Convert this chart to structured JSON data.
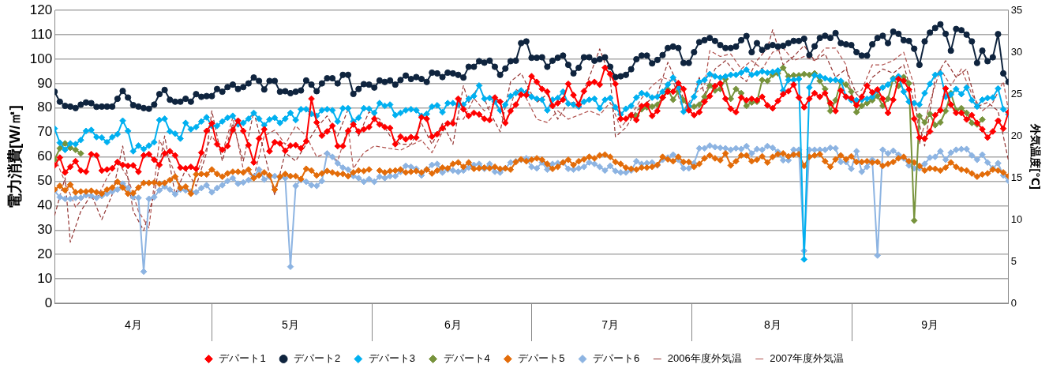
{
  "chart_data": {
    "type": "line",
    "ylabel": "電力消費[W/㎡]",
    "y2label": "外気温度[℃]",
    "x": [
      "--04-01",
      "--04-02",
      "--04-03",
      "--04-04",
      "--04-05",
      "--04-06",
      "--04-07",
      "--04-08",
      "--04-09",
      "--04-10",
      "--04-11",
      "--04-12",
      "--04-13",
      "--04-14",
      "--04-15",
      "--04-16",
      "--04-17",
      "--04-18",
      "--04-19",
      "--04-20",
      "--04-21",
      "--04-22",
      "--04-23",
      "--04-24",
      "--04-25",
      "--04-26",
      "--04-27",
      "--04-28",
      "--04-29",
      "--04-30",
      "--05-01",
      "--05-02",
      "--05-03",
      "--05-04",
      "--05-05",
      "--05-06",
      "--05-07",
      "--05-08",
      "--05-09",
      "--05-10",
      "--05-11",
      "--05-12",
      "--05-13",
      "--05-14",
      "--05-15",
      "--05-16",
      "--05-17",
      "--05-18",
      "--05-19",
      "--05-20",
      "--05-21",
      "--05-22",
      "--05-23",
      "--05-24",
      "--05-25",
      "--05-26",
      "--05-27",
      "--05-28",
      "--05-29",
      "--05-30",
      "--05-31",
      "--06-01",
      "--06-02",
      "--06-03",
      "--06-04",
      "--06-05",
      "--06-06",
      "--06-07",
      "--06-08",
      "--06-09",
      "--06-10",
      "--06-11",
      "--06-12",
      "--06-13",
      "--06-14",
      "--06-15",
      "--06-16",
      "--06-17",
      "--06-18",
      "--06-19",
      "--06-20",
      "--06-21",
      "--06-22",
      "--06-23",
      "--06-24",
      "--06-25",
      "--06-26",
      "--06-27",
      "--06-28",
      "--06-29",
      "--06-30",
      "--07-01",
      "--07-02",
      "--07-03",
      "--07-04",
      "--07-05",
      "--07-06",
      "--07-07",
      "--07-08",
      "--07-09",
      "--07-10",
      "--07-11",
      "--07-12",
      "--07-13",
      "--07-14",
      "--07-15",
      "--07-16",
      "--07-17",
      "--07-18",
      "--07-19",
      "--07-20",
      "--07-21",
      "--07-22",
      "--07-23",
      "--07-24",
      "--07-25",
      "--07-26",
      "--07-27",
      "--07-28",
      "--07-29",
      "--07-30",
      "--07-31",
      "--08-01",
      "--08-02",
      "--08-03",
      "--08-04",
      "--08-05",
      "--08-06",
      "--08-07",
      "--08-08",
      "--08-09",
      "--08-10",
      "--08-11",
      "--08-12",
      "--08-13",
      "--08-14",
      "--08-15",
      "--08-16",
      "--08-17",
      "--08-18",
      "--08-19",
      "--08-20",
      "--08-21",
      "--08-22",
      "--08-23",
      "--08-24",
      "--08-25",
      "--08-26",
      "--08-27",
      "--08-28",
      "--08-29",
      "--08-30",
      "--08-31",
      "--09-01",
      "--09-02",
      "--09-03",
      "--09-04",
      "--09-05",
      "--09-06",
      "--09-07",
      "--09-08",
      "--09-09",
      "--09-10",
      "--09-11",
      "--09-12",
      "--09-13",
      "--09-14",
      "--09-15",
      "--09-16",
      "--09-17",
      "--09-18",
      "--09-19",
      "--09-20",
      "--09-21",
      "--09-22",
      "--09-23",
      "--09-24",
      "--09-25",
      "--09-26",
      "--09-27",
      "--09-28",
      "--09-29",
      "--09-30"
    ],
    "xlim": [
      "--04-01",
      "--09-30"
    ],
    "xticks": [
      {
        "value": "--04-16",
        "label": "4月"
      },
      {
        "value": "--05-16",
        "label": "5月"
      },
      {
        "value": "--06-16",
        "label": "6月"
      },
      {
        "value": "--07-16",
        "label": "7月"
      },
      {
        "value": "--08-16",
        "label": "8月"
      },
      {
        "value": "--09-15",
        "label": "9月"
      }
    ],
    "ylim": [
      0,
      120
    ],
    "yticks": [
      0,
      10,
      20,
      30,
      40,
      50,
      60,
      70,
      80,
      90,
      100,
      110,
      120
    ],
    "y2lim": [
      0,
      35
    ],
    "y2ticks": [
      0,
      5,
      10,
      15,
      20,
      25,
      30,
      35
    ],
    "grid": "y",
    "legend": "bottom",
    "series": [
      {
        "name": "デパート1",
        "color": "#ff0000",
        "marker": "diamond",
        "values": [
          56.5,
          59.7,
          53.6,
          55.9,
          58.2,
          54.4,
          53.9,
          61.1,
          60.6,
          54.4,
          54.8,
          55.3,
          57.9,
          56.7,
          56.3,
          56.5,
          53.9,
          60.6,
          61.1,
          58.8,
          56.7,
          61.4,
          62.3,
          60.6,
          55.6,
          55.3,
          55.9,
          55.1,
          61.7,
          70.6,
          73.7,
          65.2,
          62.9,
          64.4,
          71.0,
          74.8,
          70.6,
          64.8,
          57.7,
          67.5,
          71.3,
          62.3,
          66.0,
          65.5,
          62.5,
          64.6,
          64.8,
          63.5,
          66.4,
          83.8,
          74.1,
          68.7,
          70.4,
          72.7,
          64.4,
          64.4,
          70.6,
          73.3,
          70.4,
          71.3,
          72.2,
          75.6,
          73.3,
          72.2,
          71.8,
          65.2,
          68.3,
          67.2,
          68.1,
          67.9,
          76.2,
          75.6,
          68.3,
          69.3,
          71.8,
          73.7,
          73.7,
          83.8,
          79.5,
          76.8,
          78.0,
          77.4,
          75.6,
          75.1,
          84.3,
          82.6,
          73.9,
          78.8,
          81.4,
          85.5,
          85.3,
          93.0,
          90.7,
          87.8,
          86.7,
          80.9,
          82.0,
          83.4,
          89.9,
          85.3,
          81.4,
          86.9,
          90.1,
          90.7,
          89.6,
          96.5,
          93.9,
          89.9,
          75.6,
          75.6,
          77.1,
          75.1,
          80.8,
          81.4,
          76.8,
          78.8,
          84.3,
          86.7,
          86.7,
          90.2,
          87.8,
          79.1,
          77.1,
          78.3,
          82.6,
          84.9,
          89.0,
          90.1,
          83.8,
          79.7,
          78.3,
          84.3,
          83.2,
          83.8,
          83.2,
          84.6,
          81.1,
          79.9,
          82.9,
          85.7,
          86.9,
          89.6,
          84.3,
          80.3,
          83.8,
          86.1,
          84.6,
          86.1,
          82.0,
          78.8,
          87.2,
          84.6,
          84.1,
          81.1,
          84.6,
          89.2,
          86.4,
          87.6,
          83.8,
          78.0,
          83.4,
          91.9,
          91.1,
          87.6,
          75.6,
          67.9,
          67.5,
          70.4,
          77.1,
          79.1,
          88.0,
          81.4,
          78.0,
          78.0,
          75.3,
          77.1,
          73.9,
          71.3,
          67.9,
          70.4,
          74.8,
          71.6,
          78.3
        ]
      },
      {
        "name": "デパート2",
        "color": "#0f243e",
        "marker": "circle",
        "values": [
          86.7,
          82.6,
          80.9,
          80.6,
          80.0,
          81.4,
          82.3,
          82.0,
          80.5,
          80.6,
          80.6,
          80.6,
          83.8,
          87.0,
          84.3,
          81.2,
          80.6,
          80.0,
          79.7,
          81.4,
          85.7,
          87.4,
          83.4,
          82.6,
          82.6,
          83.8,
          82.6,
          85.7,
          84.6,
          84.9,
          84.9,
          87.8,
          86.7,
          88.6,
          89.6,
          87.8,
          88.6,
          90.1,
          92.5,
          91.1,
          87.6,
          91.1,
          91.1,
          86.7,
          86.9,
          86.1,
          86.7,
          87.2,
          91.3,
          89.6,
          86.9,
          90.1,
          92.2,
          92.2,
          90.1,
          93.6,
          93.6,
          85.8,
          87.8,
          89.8,
          89.6,
          88.4,
          91.3,
          90.7,
          91.3,
          89.6,
          91.5,
          93.3,
          91.9,
          92.7,
          91.9,
          90.7,
          94.5,
          94.2,
          92.7,
          94.5,
          94.2,
          93.6,
          92.5,
          96.9,
          96.9,
          99.2,
          98.6,
          99.4,
          96.9,
          93.6,
          96.2,
          99.2,
          99.4,
          106.6,
          107.3,
          100.6,
          100.6,
          100.8,
          96.9,
          99.4,
          100.6,
          101.5,
          97.7,
          94.2,
          96.5,
          100.8,
          100.8,
          99.4,
          100.0,
          100.8,
          96.9,
          92.7,
          93.0,
          93.6,
          95.9,
          100.0,
          101.5,
          101.5,
          98.3,
          99.7,
          101.7,
          104.6,
          105.2,
          104.6,
          98.5,
          98.5,
          102.9,
          107.0,
          107.8,
          108.7,
          107.5,
          105.8,
          104.6,
          104.6,
          105.2,
          107.8,
          109.5,
          102.9,
          106.6,
          103.8,
          105.2,
          105.8,
          105.2,
          105.5,
          106.6,
          107.5,
          107.5,
          108.4,
          101.7,
          105.3,
          108.7,
          109.6,
          108.7,
          110.7,
          106.6,
          106.1,
          105.8,
          102.9,
          101.5,
          101.5,
          106.1,
          108.7,
          109.6,
          106.6,
          111.3,
          110.4,
          107.8,
          107.5,
          104.3,
          97.7,
          107.3,
          110.9,
          112.8,
          114.3,
          110.4,
          103.5,
          112.4,
          111.9,
          110.1,
          107.3,
          98.5,
          103.5,
          99.2,
          100.8,
          110.3,
          94.2,
          90.7
        ]
      },
      {
        "name": "デパート3",
        "color": "#00b0f0",
        "marker": "diamond",
        "values": [
          71.6,
          65.8,
          62.9,
          65.5,
          65.2,
          66.9,
          70.6,
          71.0,
          68.1,
          67.9,
          66.0,
          68.1,
          69.3,
          74.8,
          70.6,
          62.3,
          64.6,
          63.2,
          64.6,
          66.0,
          75.1,
          75.6,
          70.4,
          69.5,
          67.5,
          73.9,
          71.3,
          72.2,
          74.5,
          76.2,
          72.7,
          72.7,
          74.5,
          76.0,
          76.8,
          73.3,
          73.9,
          75.6,
          78.0,
          75.6,
          73.0,
          75.3,
          76.0,
          73.9,
          75.6,
          78.0,
          75.1,
          79.5,
          79.5,
          77.6,
          76.8,
          79.1,
          79.5,
          79.1,
          74.5,
          79.9,
          79.9,
          74.5,
          76.0,
          79.9,
          79.7,
          78.0,
          82.0,
          80.9,
          81.4,
          77.1,
          78.0,
          79.1,
          79.5,
          79.1,
          76.8,
          77.6,
          80.6,
          81.1,
          78.3,
          82.0,
          82.0,
          81.4,
          81.4,
          83.8,
          84.9,
          89.2,
          83.8,
          84.1,
          82.6,
          79.1,
          81.4,
          84.9,
          86.1,
          87.2,
          86.4,
          84.6,
          83.8,
          83.4,
          79.1,
          83.4,
          84.1,
          86.7,
          81.8,
          81.4,
          80.6,
          82.6,
          83.4,
          83.8,
          79.9,
          83.4,
          84.1,
          80.3,
          77.4,
          79.7,
          80.9,
          84.3,
          86.1,
          85.5,
          84.3,
          84.6,
          86.7,
          89.6,
          92.5,
          88.4,
          78.5,
          80.9,
          84.6,
          90.7,
          91.5,
          93.9,
          93.0,
          92.5,
          93.0,
          93.6,
          93.6,
          94.5,
          95.7,
          93.6,
          94.2,
          95.0,
          94.5,
          94.8,
          95.4,
          87.2,
          91.5,
          91.5,
          91.9,
          18.0,
          88.4,
          93.4,
          93.0,
          92.2,
          91.5,
          91.5,
          91.1,
          84.6,
          83.2,
          83.2,
          83.4,
          83.8,
          84.6,
          87.2,
          88.4,
          89.6,
          91.9,
          93.0,
          86.7,
          82.6,
          82.0,
          81.4,
          86.1,
          89.9,
          93.6,
          94.2,
          84.6,
          85.5,
          87.8,
          85.7,
          88.4,
          83.2,
          80.6,
          83.4,
          84.1,
          84.3,
          88.0,
          79.5,
          77.4
        ]
      },
      {
        "name": "デパート4",
        "color": "#77933c",
        "marker": "diamond",
        "x": [
          "--04-01",
          "--04-02",
          "--04-03",
          "--04-04",
          "--04-05",
          "--04-06",
          "--04-07",
          "--07-20",
          "--07-21",
          "--07-22",
          "--07-23",
          "--07-24",
          "--07-25",
          "--07-26",
          "--07-27",
          "--07-28",
          "--07-29",
          "--07-30",
          "--07-31",
          "--08-01",
          "--08-02",
          "--08-03",
          "--08-04",
          "--08-05",
          "--08-06",
          "--08-07",
          "--08-08",
          "--08-09",
          "--08-10",
          "--08-11",
          "--08-12",
          "--08-13",
          "--08-14",
          "--08-15",
          "--08-16",
          "--08-17",
          "--08-18",
          "--08-19",
          "--08-20",
          "--08-21",
          "--08-22",
          "--08-23",
          "--08-24",
          "--08-25",
          "--08-26",
          "--08-27",
          "--08-28",
          "--08-29",
          "--08-30",
          "--08-31",
          "--09-01",
          "--09-02",
          "--09-03",
          "--09-04",
          "--09-05",
          "--09-06",
          "--09-07",
          "--09-08",
          "--09-09",
          "--09-10",
          "--09-11",
          "--09-12",
          "--09-13",
          "--09-14",
          "--09-15",
          "--09-16",
          "--09-17",
          "--09-18",
          "--09-19",
          "--09-20",
          "--09-21",
          "--09-22",
          "--09-23",
          "--09-24",
          "--09-25"
        ],
        "values": [
          58.8,
          63.5,
          65.5,
          63.7,
          62.9,
          61.4,
          null,
          76.8,
          76.8,
          79.5,
          80.3,
          80.6,
          81.4,
          84.3,
          87.6,
          83.4,
          86.7,
          83.2,
          80.6,
          80.6,
          81.4,
          84.6,
          89.2,
          87.2,
          87.8,
          91.9,
          83.8,
          87.8,
          86.1,
          80.9,
          82.3,
          82.6,
          91.5,
          91.1,
          93.6,
          94.2,
          96.5,
          93.0,
          93.4,
          93.4,
          93.9,
          93.6,
          94.2,
          91.1,
          87.8,
          78.8,
          83.2,
          90.7,
          89.6,
          86.7,
          78.3,
          80.9,
          82.0,
          83.2,
          84.9,
          80.9,
          83.8,
          92.2,
          89.0,
          92.7,
          90.1,
          33.9,
          76.8,
          74.1,
          77.6,
          73.0,
          74.1,
          78.8,
          86.1,
          79.1,
          79.9,
          78.0,
          73.9,
          73.3,
          75.3
        ]
      },
      {
        "name": "デパート5",
        "color": "#e36c09",
        "marker": "diamond",
        "values": [
          46.6,
          48.1,
          46.3,
          48.6,
          45.5,
          45.8,
          45.8,
          46.1,
          45.5,
          44.9,
          46.6,
          47.4,
          49.8,
          47.4,
          44.9,
          45.1,
          47.4,
          49.3,
          49.3,
          49.5,
          49.0,
          49.3,
          50.5,
          51.9,
          47.2,
          47.8,
          44.9,
          52.8,
          53.0,
          52.8,
          54.8,
          53.0,
          51.9,
          53.2,
          53.9,
          53.9,
          53.6,
          54.8,
          51.3,
          52.4,
          53.6,
          52.4,
          46.6,
          51.9,
          53.0,
          52.1,
          52.1,
          50.9,
          55.1,
          54.4,
          52.4,
          53.2,
          54.2,
          53.6,
          53.0,
          53.0,
          52.1,
          53.6,
          54.4,
          54.2,
          54.8,
          null,
          54.4,
          53.6,
          54.2,
          54.4,
          54.8,
          53.6,
          53.9,
          54.2,
          53.6,
          54.8,
          53.2,
          54.4,
          55.6,
          55.3,
          57.1,
          57.7,
          55.9,
          57.7,
          55.1,
          55.3,
          55.6,
          55.3,
          55.9,
          55.1,
          55.3,
          54.8,
          57.9,
          59.0,
          58.2,
          58.8,
          59.4,
          58.8,
          57.1,
          55.1,
          55.9,
          57.7,
          58.8,
          56.7,
          58.2,
          59.0,
          60.0,
          59.4,
          60.6,
          60.9,
          60.0,
          57.9,
          57.1,
          55.6,
          55.1,
          54.8,
          55.6,
          55.6,
          55.9,
          56.7,
          60.0,
          59.0,
          58.2,
          60.0,
          57.9,
          57.9,
          55.9,
          57.1,
          59.4,
          60.6,
          59.4,
          58.6,
          61.4,
          56.5,
          58.2,
          60.6,
          60.6,
          58.2,
          58.8,
          60.2,
          57.7,
          60.0,
          61.1,
          61.4,
          60.2,
          60.9,
          61.1,
          56.3,
          60.0,
          60.6,
          61.1,
          58.2,
          55.9,
          59.0,
          60.6,
          59.0,
          60.2,
          57.9,
          57.9,
          58.2,
          57.7,
          57.9,
          56.3,
          57.1,
          57.9,
          59.4,
          60.0,
          58.2,
          57.7,
          56.3,
          54.4,
          55.3,
          55.1,
          54.4,
          55.6,
          57.7,
          55.9,
          54.8,
          54.4,
          53.2,
          51.9,
          52.8,
          53.2,
          54.8,
          54.4,
          53.6,
          52.1
        ]
      },
      {
        "name": "デパート6",
        "color": "#8db4e2",
        "marker": "diamond",
        "values": [
          46.1,
          43.5,
          42.8,
          42.8,
          43.2,
          43.2,
          44.3,
          44.0,
          43.2,
          44.0,
          44.9,
          45.8,
          46.6,
          49.0,
          47.2,
          43.5,
          43.2,
          13.0,
          42.8,
          43.5,
          46.3,
          47.8,
          46.6,
          44.7,
          46.6,
          46.3,
          45.8,
          45.5,
          47.2,
          48.4,
          45.5,
          47.2,
          48.4,
          50.1,
          51.3,
          49.0,
          49.5,
          50.5,
          51.9,
          54.8,
          50.7,
          51.9,
          52.1,
          51.6,
          51.3,
          15.0,
          48.1,
          50.5,
          49.8,
          48.4,
          48.1,
          50.1,
          61.4,
          60.0,
          57.4,
          55.6,
          54.8,
          52.1,
          51.3,
          49.8,
          50.9,
          49.8,
          51.9,
          51.3,
          52.1,
          52.1,
          53.9,
          56.3,
          55.9,
          55.1,
          52.4,
          54.8,
          56.7,
          57.1,
          53.6,
          54.8,
          54.4,
          53.9,
          54.4,
          55.6,
          56.7,
          57.1,
          55.1,
          57.1,
          53.9,
          53.6,
          55.3,
          57.7,
          58.2,
          58.8,
          59.4,
          55.9,
          55.3,
          57.7,
          54.8,
          57.1,
          57.4,
          57.7,
          55.1,
          54.8,
          55.3,
          55.9,
          57.7,
          57.1,
          55.9,
          54.4,
          56.3,
          54.2,
          53.6,
          53.6,
          54.4,
          58.2,
          57.1,
          57.4,
          57.7,
          56.5,
          58.8,
          59.7,
          60.9,
          58.8,
          55.3,
          55.3,
          57.4,
          63.5,
          63.5,
          64.6,
          64.0,
          63.7,
          63.5,
          62.9,
          63.5,
          63.2,
          64.4,
          61.4,
          63.2,
          62.9,
          64.4,
          63.7,
          62.1,
          58.6,
          58.6,
          62.9,
          62.9,
          21.5,
          62.9,
          62.9,
          62.9,
          62.9,
          63.7,
          63.5,
          57.9,
          57.9,
          55.1,
          62.3,
          53.9,
          55.9,
          58.8,
          19.6,
          62.9,
          61.4,
          62.5,
          60.9,
          59.4,
          56.5,
          55.3,
          55.3,
          57.1,
          59.7,
          60.0,
          62.3,
          58.8,
          61.7,
          62.9,
          63.2,
          63.2,
          60.6,
          58.8,
          60.9,
          57.7,
          55.3,
          57.4,
          52.4,
          50.1
        ]
      },
      {
        "name": "2006年度外気温",
        "color": "#943634",
        "marker": "none",
        "line_style": "dashed",
        "axis": "y2",
        "x": [
          "--04-01",
          "--04-03",
          "--04-04",
          "--04-06",
          "--04-08",
          "--04-10",
          "--04-12",
          "--04-14",
          "--04-16",
          "--04-18",
          "--04-20",
          "--04-22",
          "--04-24",
          "--04-26",
          "--04-28",
          "--04-30",
          "--05-01",
          "--05-03",
          "--05-05",
          "--05-07",
          "--05-09",
          "--05-11",
          "--05-13",
          "--05-15",
          "--05-17",
          "--05-19",
          "--05-21",
          "--05-23",
          "--05-25",
          "--05-27",
          "--05-29",
          "--05-31",
          "--06-02",
          "--06-04",
          "--06-06",
          "--06-08",
          "--06-10",
          "--06-12",
          "--06-14",
          "--06-16",
          "--06-18",
          "--06-19",
          "--06-21",
          "--06-23",
          "--06-25",
          "--06-27",
          "--06-29",
          "--07-01",
          "--07-02",
          "--07-04",
          "--07-06",
          "--07-08",
          "--07-10",
          "--07-12",
          "--07-14",
          "--07-16",
          "--07-17",
          "--07-19",
          "--07-21",
          "--07-23",
          "--07-25",
          "--07-27",
          "--07-29",
          "--07-31",
          "--08-02",
          "--08-03",
          "--08-05",
          "--08-07",
          "--08-09",
          "--08-11",
          "--08-13",
          "--08-15",
          "--08-16",
          "--08-18",
          "--08-20",
          "--08-22",
          "--08-24",
          "--08-26",
          "--08-28",
          "--08-30",
          "--09-01",
          "--09-02",
          "--09-04",
          "--09-06",
          "--09-08",
          "--09-10",
          "--09-12",
          "--09-14",
          "--09-16",
          "--09-18",
          "--09-20",
          "--09-22",
          "--09-24",
          "--09-26",
          "--09-28",
          "--09-30"
        ],
        "values": [
          10.5,
          15,
          7.3,
          11,
          13,
          10,
          13,
          18.8,
          11,
          8.7,
          13,
          20,
          13,
          16,
          14,
          18,
          23,
          17,
          21.5,
          17,
          22.9,
          18,
          12.9,
          18,
          17,
          19,
          21,
          22.4,
          20,
          23.2,
          20,
          22.9,
          22,
          20,
          19,
          19,
          21.5,
          19,
          21.5,
          19,
          26,
          24,
          26,
          22.9,
          20.5,
          26.5,
          27.5,
          25,
          24,
          25,
          22,
          24,
          24,
          27,
          30.4,
          27,
          19.9,
          21,
          23,
          24,
          25,
          28.8,
          26,
          23,
          27,
          25,
          28,
          29,
          27.5,
          26.5,
          29,
          30.5,
          32.7,
          28.5,
          29.5,
          30.8,
          29,
          29.8,
          27,
          28,
          25,
          24.5,
          27,
          28,
          27.5,
          28.5,
          24,
          18.8,
          27,
          29,
          27,
          28,
          23.5,
          24,
          23,
          17
        ]
      },
      {
        "name": "2007年度外気温",
        "color": "#b0504c",
        "marker": "none",
        "line_style": "dashed",
        "axis": "y2",
        "x": [
          "--04-01",
          "--04-03",
          "--04-05",
          "--04-07",
          "--04-09",
          "--04-11",
          "--04-13",
          "--04-15",
          "--04-17",
          "--04-19",
          "--04-21",
          "--04-23",
          "--04-25",
          "--04-27",
          "--04-29",
          "--05-01",
          "--05-03",
          "--05-05",
          "--05-07",
          "--05-09",
          "--05-11",
          "--05-13",
          "--05-15",
          "--05-17",
          "--05-19",
          "--05-21",
          "--05-23",
          "--05-25",
          "--05-27",
          "--05-28",
          "--05-30",
          "--06-01",
          "--06-04",
          "--06-06",
          "--06-08",
          "--06-10",
          "--06-12",
          "--06-14",
          "--06-16",
          "--06-18",
          "--06-20",
          "--06-22",
          "--06-24",
          "--06-26",
          "--06-28",
          "--06-30",
          "--07-02",
          "--07-04",
          "--07-06",
          "--07-08",
          "--07-10",
          "--07-12",
          "--07-14",
          "--07-16",
          "--07-18",
          "--07-20",
          "--07-22",
          "--07-24",
          "--07-26",
          "--07-28",
          "--07-30",
          "--08-01",
          "--08-03",
          "--08-04",
          "--08-06",
          "--08-08",
          "--08-10",
          "--08-12",
          "--08-14",
          "--08-16",
          "--08-18",
          "--08-20",
          "--08-22",
          "--08-24",
          "--08-26",
          "--08-28",
          "--08-30",
          "--08-31",
          "--09-02",
          "--09-04",
          "--09-06",
          "--09-08",
          "--09-10",
          "--09-12",
          "--09-13",
          "--09-15",
          "--09-17",
          "--09-19",
          "--09-21",
          "--09-23",
          "--09-25",
          "--09-27",
          "--09-29",
          "--09-30"
        ],
        "values": [
          17.5,
          14.5,
          11.5,
          13,
          12.5,
          15,
          17,
          15,
          11,
          9,
          19.5,
          17,
          14,
          13.5,
          17,
          20,
          18,
          22.2,
          16,
          15.1,
          20,
          20.7,
          19,
          21.2,
          20,
          17.5,
          18,
          17,
          21,
          16.1,
          18,
          18.8,
          18.5,
          18.3,
          18.9,
          19.5,
          18,
          20.5,
          22,
          22,
          24.5,
          23,
          24,
          21.5,
          25.6,
          24.5,
          22,
          21.6,
          23,
          22,
          22.5,
          23,
          22.5,
          24,
          21,
          22.5,
          24.5,
          26,
          27,
          26.5,
          23,
          25,
          26,
          30.2,
          29.5,
          29.8,
          28,
          29,
          28,
          30,
          30.5,
          29,
          29.5,
          29,
          30.5,
          30.5,
          28.5,
          25,
          25.5,
          28.5,
          28.5,
          29,
          30,
          26,
          19,
          24,
          28,
          26,
          28,
          25,
          23,
          24,
          26.5,
          23
        ]
      }
    ]
  }
}
